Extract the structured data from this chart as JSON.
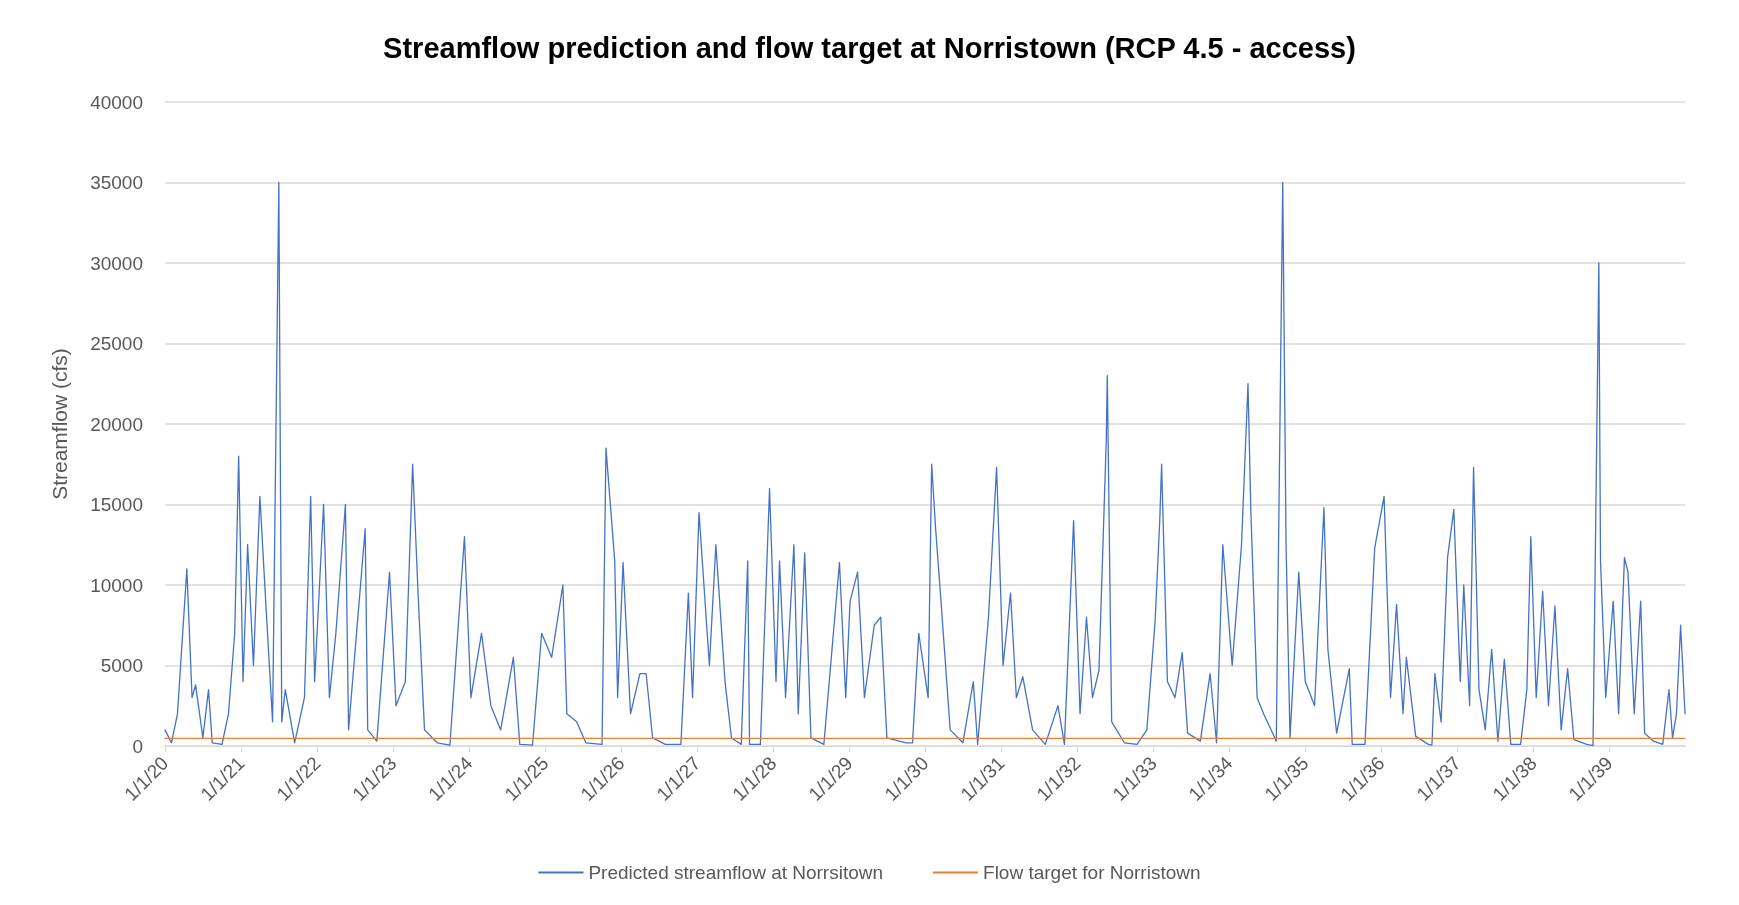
{
  "chart_data": {
    "type": "line",
    "title": "Streamflow prediction and flow target at Norristown (RCP 4.5 - access)",
    "ylabel": "Streamflow (cfs)",
    "xlim": [
      "2020-01-01",
      "2039-12-31"
    ],
    "xticks": [
      {
        "value": "2020-01-01",
        "label": "1/1/20"
      },
      {
        "value": "2021-01-01",
        "label": "1/1/21"
      },
      {
        "value": "2022-01-01",
        "label": "1/1/22"
      },
      {
        "value": "2023-01-01",
        "label": "1/1/23"
      },
      {
        "value": "2024-01-01",
        "label": "1/1/24"
      },
      {
        "value": "2025-01-01",
        "label": "1/1/25"
      },
      {
        "value": "2026-01-01",
        "label": "1/1/26"
      },
      {
        "value": "2027-01-01",
        "label": "1/1/27"
      },
      {
        "value": "2028-01-01",
        "label": "1/1/28"
      },
      {
        "value": "2029-01-01",
        "label": "1/1/29"
      },
      {
        "value": "2030-01-01",
        "label": "1/1/30"
      },
      {
        "value": "2031-01-01",
        "label": "1/1/31"
      },
      {
        "value": "2032-01-01",
        "label": "1/1/32"
      },
      {
        "value": "2033-01-01",
        "label": "1/1/33"
      },
      {
        "value": "2034-01-01",
        "label": "1/1/34"
      },
      {
        "value": "2035-01-01",
        "label": "1/1/35"
      },
      {
        "value": "2036-01-01",
        "label": "1/1/36"
      },
      {
        "value": "2037-01-01",
        "label": "1/1/37"
      },
      {
        "value": "2038-01-01",
        "label": "1/1/38"
      },
      {
        "value": "2039-01-01",
        "label": "1/1/39"
      }
    ],
    "ylim": [
      0,
      40000
    ],
    "yticks": [
      0,
      5000,
      10000,
      15000,
      20000,
      25000,
      30000,
      35000,
      40000
    ],
    "grid": "y",
    "legend": "bottom",
    "marker": "none",
    "line_style": "solid",
    "series": [
      {
        "name": "Predicted streamflow at Norrsitown",
        "color": "#4472c4",
        "x": [
          "2020-01-01",
          "2020-02-01",
          "2020-03-01",
          "2020-04-15",
          "2020-05-10",
          "2020-05-27",
          "2020-07-01",
          "2020-07-28",
          "2020-08-15",
          "2020-10-01",
          "2020-11-01",
          "2020-12-01",
          "2020-12-20",
          "2021-01-10",
          "2021-02-01",
          "2021-03-01",
          "2021-04-01",
          "2021-05-01",
          "2021-06-01",
          "2021-07-01",
          "2021-07-15",
          "2021-08-01",
          "2021-09-15",
          "2021-11-01",
          "2021-12-01",
          "2021-12-20",
          "2022-02-01",
          "2022-03-01",
          "2022-04-01",
          "2022-05-17",
          "2022-06-01",
          "2022-08-20",
          "2022-09-01",
          "2022-10-15",
          "2022-12-15",
          "2023-01-15",
          "2023-03-01",
          "2023-04-05",
          "2023-05-01",
          "2023-06-01",
          "2023-08-01",
          "2023-10-01",
          "2023-12-10",
          "2024-01-10",
          "2024-03-01",
          "2024-04-15",
          "2024-06-01",
          "2024-08-01",
          "2024-09-01",
          "2024-11-01",
          "2024-12-15",
          "2025-02-01",
          "2025-03-27",
          "2025-04-15",
          "2025-06-01",
          "2025-07-15",
          "2025-10-01",
          "2025-10-20",
          "2025-12-01",
          "2025-12-15",
          "2026-01-10",
          "2026-02-15",
          "2026-04-01",
          "2026-05-01",
          "2026-06-01",
          "2026-08-01",
          "2026-10-15",
          "2026-11-20",
          "2026-12-10",
          "2027-01-10",
          "2027-03-01",
          "2027-04-01",
          "2027-05-15",
          "2027-06-15",
          "2027-08-01",
          "2027-09-01",
          "2027-09-10",
          "2027-11-01",
          "2027-12-15",
          "2028-01-15",
          "2028-02-01",
          "2028-03-01",
          "2028-04-10",
          "2028-05-01",
          "2028-06-01",
          "2028-07-01",
          "2028-09-01",
          "2028-11-15",
          "2028-12-15",
          "2029-01-05",
          "2029-02-10",
          "2029-03-15",
          "2029-05-01",
          "2029-06-01",
          "2029-07-01",
          "2029-10-01",
          "2029-11-01",
          "2029-12-01",
          "2030-01-15",
          "2030-02-01",
          "2030-02-20",
          "2030-03-15",
          "2030-05-01",
          "2030-07-01",
          "2030-08-20",
          "2030-09-10",
          "2030-11-01",
          "2030-12-10",
          "2031-01-10",
          "2031-02-15",
          "2031-03-15",
          "2031-04-15",
          "2031-06-01",
          "2031-08-01",
          "2031-10-01",
          "2031-11-01",
          "2031-12-15",
          "2032-01-15",
          "2032-02-15",
          "2032-03-15",
          "2032-04-15",
          "2032-05-20",
          "2032-05-25",
          "2032-06-15",
          "2032-08-15",
          "2032-10-15",
          "2032-12-01",
          "2033-01-10",
          "2033-02-01",
          "2033-02-10",
          "2033-03-10",
          "2033-04-15",
          "2033-05-20",
          "2033-06-15",
          "2033-08-15",
          "2033-10-01",
          "2033-11-01",
          "2033-12-01",
          "2034-01-15",
          "2034-03-01",
          "2034-04-01",
          "2034-04-15",
          "2034-05-15",
          "2034-06-15",
          "2034-08-01",
          "2034-08-15",
          "2034-09-15",
          "2034-10-01",
          "2034-10-20",
          "2034-12-01",
          "2035-01-01",
          "2035-02-15",
          "2035-04-01",
          "2035-04-20",
          "2035-06-01",
          "2035-08-01",
          "2035-08-15",
          "2035-10-15",
          "2035-12-01",
          "2036-01-15",
          "2036-02-15",
          "2036-03-15",
          "2036-04-15",
          "2036-05-01",
          "2036-06-15",
          "2036-08-15",
          "2036-09-01",
          "2036-09-15",
          "2036-10-15",
          "2036-11-15",
          "2036-12-15",
          "2037-01-15",
          "2037-02-01",
          "2037-03-01",
          "2037-03-20",
          "2037-04-15",
          "2037-05-15",
          "2037-06-15",
          "2037-07-15",
          "2037-08-15",
          "2037-09-15",
          "2037-11-01",
          "2037-12-01",
          "2037-12-20",
          "2038-01-15",
          "2038-02-15",
          "2038-03-15",
          "2038-04-15",
          "2038-05-15",
          "2038-06-15",
          "2038-07-15",
          "2038-09-15",
          "2038-10-15",
          "2038-11-12",
          "2038-11-20",
          "2038-12-15",
          "2039-01-20",
          "2039-02-15",
          "2039-03-15",
          "2039-04-01",
          "2039-05-01",
          "2039-06-01",
          "2039-06-20",
          "2039-08-01",
          "2039-09-15",
          "2039-10-15",
          "2039-11-01",
          "2039-11-20",
          "2039-12-10",
          "2039-12-31"
        ],
        "values": [
          1000,
          200,
          2000,
          11000,
          3000,
          3800,
          500,
          3500,
          200,
          100,
          2000,
          7000,
          18000,
          4000,
          12500,
          5000,
          15500,
          8500,
          1500,
          35000,
          1500,
          3500,
          200,
          3000,
          15500,
          4000,
          15000,
          3000,
          7000,
          15000,
          1000,
          13500,
          1000,
          300,
          10800,
          2500,
          4000,
          17500,
          9500,
          1000,
          200,
          50,
          13000,
          3000,
          7000,
          2500,
          1000,
          5500,
          100,
          50,
          7000,
          5500,
          10000,
          2000,
          1500,
          200,
          100,
          18500,
          11500,
          3000,
          11400,
          2000,
          4500,
          4500,
          500,
          100,
          100,
          9500,
          3000,
          14500,
          5000,
          12500,
          4000,
          500,
          100,
          11500,
          100,
          100,
          16000,
          4000,
          11500,
          3000,
          12500,
          2000,
          12000,
          500,
          100,
          11400,
          3000,
          9000,
          10800,
          3000,
          7500,
          8000,
          500,
          200,
          200,
          7000,
          3000,
          17500,
          13500,
          9500,
          1000,
          200,
          4000,
          100,
          8000,
          17300,
          5000,
          9500,
          3000,
          4300,
          1000,
          100,
          2500,
          100,
          14000,
          2000,
          8000,
          3000,
          4700,
          19000,
          23000,
          1500,
          200,
          100,
          1000,
          7800,
          14000,
          17500,
          4000,
          3000,
          5800,
          800,
          300,
          4500,
          200,
          12500,
          5000,
          12500,
          22500,
          14500,
          3000,
          2000,
          700,
          300,
          35000,
          12500,
          500,
          10800,
          4000,
          2500,
          14800,
          6000,
          800,
          4800,
          100,
          100,
          12300,
          15500,
          3000,
          8800,
          2000,
          5500,
          600,
          100,
          50,
          4500,
          1500,
          11700,
          14700,
          4000,
          10000,
          2500,
          17300,
          3500,
          1000,
          6000,
          300,
          5400,
          100,
          100,
          3500,
          13000,
          3000,
          9600,
          2500,
          8700,
          1000,
          4800,
          400,
          100,
          30,
          30000,
          11500,
          3000,
          9000,
          2000,
          11700,
          10800,
          2000,
          9000,
          800,
          300,
          100,
          3500,
          500,
          2000,
          7500,
          2000
        ]
      },
      {
        "name": "Flow target for Norristown",
        "color": "#ed7d31",
        "x": [
          "2020-01-01",
          "2039-12-31"
        ],
        "values": [
          470,
          470
        ]
      }
    ]
  }
}
